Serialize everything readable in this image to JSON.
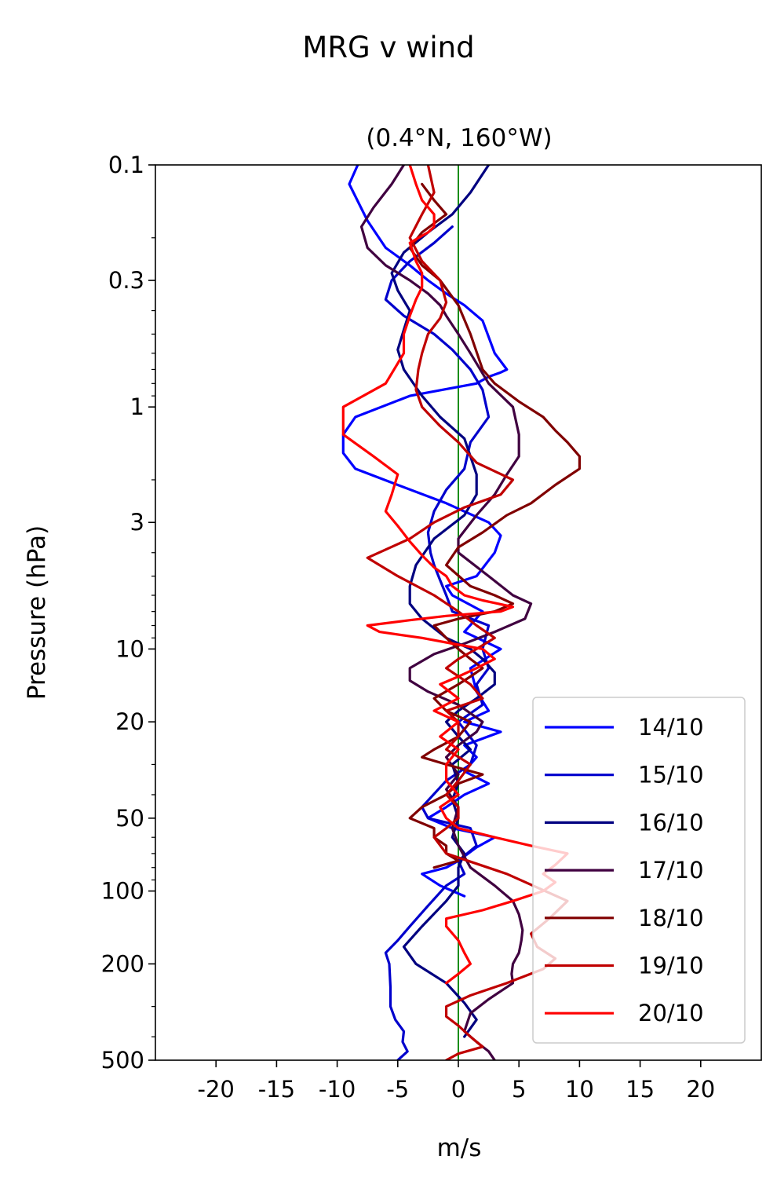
{
  "figure_title": "MRG v wind",
  "chart_data": {
    "type": "line",
    "title": "(0.4°N, 160°W)",
    "xlabel": "m/s",
    "ylabel": "Pressure (hPa)",
    "xlim": [
      -25,
      25
    ],
    "ylim": [
      500,
      0.1
    ],
    "yscale": "log",
    "x_ticks": [
      -20,
      -15,
      -10,
      -5,
      0,
      5,
      10,
      15,
      20
    ],
    "x_tick_labels": [
      "-20",
      "-15",
      "-10",
      "-5",
      "0",
      "5",
      "10",
      "15",
      "20"
    ],
    "y_ticks": [
      0.1,
      0.3,
      1,
      3,
      10,
      20,
      50,
      100,
      200,
      500
    ],
    "y_tick_labels": [
      "0.1",
      "0.3",
      "1",
      "3",
      "10",
      "20",
      "50",
      "100",
      "200",
      "500"
    ],
    "zero_line_color": "#008000",
    "legend_position": "lower right",
    "series": [
      {
        "name": "14/10",
        "color": "#0000ff",
        "x": [
          -8.3,
          -9,
          -7.5,
          -6,
          -4,
          -2.5,
          -1,
          0.5,
          2,
          3,
          4,
          3.5,
          2.5,
          1.5,
          -4,
          -8.5,
          -9.5,
          -9.5,
          -8.5,
          -5,
          -1,
          2.5,
          3.5,
          3,
          1.5,
          -1,
          -0.5,
          2,
          0.5,
          3.5,
          1,
          1.5,
          2.5,
          0.5,
          3.5,
          0.5,
          1.5,
          0.5,
          2.5,
          0.5,
          -1,
          -2.5,
          -0.5,
          3,
          1.5,
          0,
          -1,
          -3,
          -1.5,
          0.5
        ],
        "y": [
          0.1,
          0.12,
          0.17,
          0.22,
          0.26,
          0.3,
          0.34,
          0.38,
          0.44,
          0.6,
          0.7,
          0.72,
          0.75,
          0.8,
          0.9,
          1.1,
          1.3,
          1.55,
          1.8,
          2.1,
          2.5,
          3.0,
          3.4,
          4.0,
          5.0,
          5.5,
          6.0,
          7.0,
          8.5,
          10,
          12,
          15,
          18,
          20,
          22,
          25,
          28,
          32,
          36,
          40,
          45,
          50,
          55,
          60,
          66,
          75,
          80,
          85,
          95,
          105
        ]
      },
      {
        "name": "15/10",
        "color": "#0000cc",
        "x": [
          -0.5,
          -2,
          -4,
          -5.5,
          -6,
          -4.5,
          -2,
          -0.5,
          1,
          2,
          2.5,
          1,
          0.5,
          -1,
          -2,
          -2.5,
          -2.3,
          -2,
          -1.5,
          -1,
          -0.5,
          2.5,
          2,
          2.5,
          1.5,
          2,
          0,
          1.5,
          1,
          -1,
          -3,
          -2.5,
          1,
          1.5,
          0,
          0.5,
          -1,
          -2.5,
          -4,
          -5,
          -6,
          -5.7,
          -5.6,
          -5.6,
          -5.2,
          -4.5,
          -4.6,
          -4.2,
          -5
        ],
        "y": [
          0.18,
          0.21,
          0.25,
          0.3,
          0.36,
          0.42,
          0.5,
          0.58,
          0.7,
          0.85,
          1.1,
          1.4,
          1.8,
          2.2,
          2.7,
          3.3,
          4.0,
          4.5,
          5.2,
          6.0,
          7.0,
          8.0,
          10,
          12,
          14,
          17,
          20,
          25,
          30,
          35,
          45,
          50,
          55,
          65,
          75,
          85,
          95,
          115,
          140,
          160,
          180,
          200,
          250,
          300,
          340,
          380,
          420,
          460,
          500
        ]
      },
      {
        "name": "16/10",
        "color": "#000080",
        "x": [
          2.5,
          1,
          -0.5,
          -2.5,
          -4.5,
          -5.5,
          -5,
          -4,
          -4.5,
          -5,
          -4.5,
          -3,
          -1.5,
          0.5,
          1,
          1.5,
          1.5,
          0.5,
          -2,
          -3.5,
          -4,
          -4,
          -3,
          -1,
          1,
          2,
          3,
          3,
          1.5,
          0,
          -1,
          0,
          1,
          -0.5,
          0,
          -0.5,
          0,
          -0.5,
          0.5,
          0,
          0,
          -1,
          -3,
          -4.5,
          -3.5,
          -1,
          0.5,
          1.5,
          0.5
        ],
        "y": [
          0.1,
          0.13,
          0.16,
          0.19,
          0.23,
          0.28,
          0.33,
          0.4,
          0.48,
          0.58,
          0.7,
          0.9,
          1.1,
          1.35,
          1.6,
          1.9,
          2.3,
          2.8,
          3.5,
          4.5,
          5.5,
          6.5,
          7.5,
          9,
          10,
          11,
          12.5,
          14,
          16,
          18,
          20,
          23,
          26,
          30,
          36,
          42,
          50,
          60,
          70,
          80,
          95,
          110,
          140,
          170,
          200,
          240,
          290,
          340,
          400
        ]
      },
      {
        "name": "17/10",
        "color": "#400040",
        "x": [
          -4.5,
          -5.5,
          -7,
          -8,
          -7.5,
          -6,
          -4,
          -2.5,
          -1.5,
          -1,
          0,
          1,
          2.5,
          4.5,
          5,
          5,
          4,
          3,
          1.5,
          0,
          0,
          2.5,
          4.5,
          6,
          5.5,
          3,
          0.5,
          -2,
          -4,
          -4,
          -2.5,
          0,
          2,
          1.5,
          0,
          -1,
          0,
          -1,
          0,
          -0.5,
          0,
          1,
          3,
          4.5,
          5,
          5.3,
          5.2,
          5,
          4.5,
          4.4,
          4.5,
          2.5,
          1,
          0.5,
          1.5,
          2.5,
          3
        ],
        "y": [
          0.1,
          0.12,
          0.15,
          0.18,
          0.22,
          0.26,
          0.3,
          0.34,
          0.38,
          0.42,
          0.5,
          0.6,
          0.8,
          1.0,
          1.3,
          1.6,
          1.9,
          2.3,
          2.8,
          3.5,
          4.0,
          5.0,
          6.0,
          6.5,
          7.5,
          8.5,
          9.5,
          10.5,
          12,
          13.5,
          15,
          17,
          20,
          22,
          25,
          28,
          33,
          38,
          45,
          55,
          65,
          80,
          95,
          110,
          125,
          145,
          160,
          180,
          200,
          220,
          240,
          280,
          320,
          380,
          420,
          460,
          500
        ]
      },
      {
        "name": "18/10",
        "color": "#800000",
        "x": [
          -3,
          -2,
          -1,
          -3,
          -4,
          -3,
          -1.5,
          0,
          1,
          2,
          3,
          5,
          7,
          8,
          9,
          10,
          10,
          8,
          6,
          4,
          2,
          0,
          -1,
          1,
          3,
          4.5,
          3,
          0,
          -2,
          -1,
          0,
          1,
          2,
          1,
          0,
          -2,
          -1,
          1,
          0,
          -2,
          -3,
          -1,
          2,
          0,
          -1,
          -3,
          -4,
          -2,
          -2,
          -1,
          -1,
          0,
          -2
        ],
        "y": [
          0.12,
          0.14,
          0.16,
          0.19,
          0.22,
          0.26,
          0.3,
          0.38,
          0.5,
          0.7,
          0.8,
          0.95,
          1.1,
          1.25,
          1.4,
          1.6,
          1.8,
          2.1,
          2.5,
          2.8,
          3.3,
          3.8,
          4.5,
          5.5,
          6.0,
          6.5,
          7.0,
          7.5,
          8.0,
          9.0,
          10,
          11,
          12,
          13,
          14,
          16,
          18,
          20,
          23,
          26,
          28,
          30,
          33,
          36,
          40,
          45,
          50,
          55,
          60,
          65,
          70,
          75,
          80
        ]
      },
      {
        "name": "19/10",
        "color": "#c00000",
        "x": [
          -2.5,
          -2,
          -3,
          -4,
          -3,
          -1.5,
          -1,
          -1.5,
          -2.5,
          -3,
          -3.3,
          -3.5,
          -3,
          -1.5,
          0,
          1.5,
          4.5,
          3.5,
          0.5,
          -2,
          -4,
          -7.5,
          -5,
          -2,
          0,
          1.5,
          3,
          1.5,
          0,
          -1,
          1,
          2,
          -1,
          0,
          0,
          -1,
          1,
          0,
          -1,
          0,
          0,
          -1,
          -2,
          -1,
          4,
          9,
          7.5,
          6,
          6.5,
          8,
          7,
          4,
          1,
          -1,
          -1,
          0,
          1,
          2,
          0,
          -1
        ],
        "y": [
          0.1,
          0.13,
          0.16,
          0.2,
          0.25,
          0.3,
          0.37,
          0.43,
          0.5,
          0.6,
          0.7,
          0.85,
          1.0,
          1.2,
          1.4,
          1.7,
          2.0,
          2.3,
          2.6,
          3.0,
          3.5,
          4.2,
          5.0,
          6.0,
          7.0,
          8.0,
          9.0,
          10,
          11,
          12,
          14,
          16,
          18,
          20,
          23,
          26,
          30,
          35,
          40,
          45,
          50,
          55,
          60,
          70,
          85,
          110,
          130,
          150,
          170,
          190,
          210,
          240,
          270,
          300,
          330,
          360,
          400,
          440,
          470,
          500
        ]
      },
      {
        "name": "20/10",
        "color": "#ff0000",
        "x": [
          -4,
          -3.5,
          -3,
          -2,
          -2,
          -2.5,
          -4,
          -3.5,
          -3,
          -3,
          -3.5,
          -4,
          -4.5,
          -4.5,
          -6,
          -9.5,
          -9.5,
          -7,
          -5,
          -5.5,
          -6,
          -5,
          -4,
          -3,
          -2,
          -1,
          -0.5,
          0.5,
          2,
          4.5,
          3.5,
          -1,
          -4,
          -7.5,
          -6.5,
          -3,
          -0.5,
          2,
          3,
          1.5,
          0,
          -1.5,
          0,
          -2,
          0,
          -1.5,
          0,
          -1,
          -1,
          0,
          -1.5,
          -1,
          0,
          3,
          6,
          9,
          8,
          7,
          8,
          7,
          4.5,
          2,
          -1,
          -1,
          0,
          0.5,
          1,
          0,
          -1
        ],
        "y": [
          0.1,
          0.12,
          0.14,
          0.16,
          0.18,
          0.19,
          0.21,
          0.25,
          0.28,
          0.32,
          0.36,
          0.42,
          0.5,
          0.6,
          0.8,
          1.0,
          1.3,
          1.6,
          1.9,
          2.3,
          2.7,
          3.1,
          3.6,
          4.1,
          4.6,
          5.0,
          5.5,
          6.0,
          6.3,
          6.7,
          7.0,
          7.3,
          7.6,
          8.0,
          8.5,
          9.0,
          9.5,
          10,
          11,
          12,
          13,
          14,
          16,
          18,
          20,
          23,
          26,
          30,
          35,
          40,
          45,
          50,
          55,
          60,
          65,
          70,
          78,
          85,
          92,
          100,
          110,
          120,
          130,
          140,
          160,
          180,
          200,
          220,
          240
        ]
      }
    ]
  }
}
